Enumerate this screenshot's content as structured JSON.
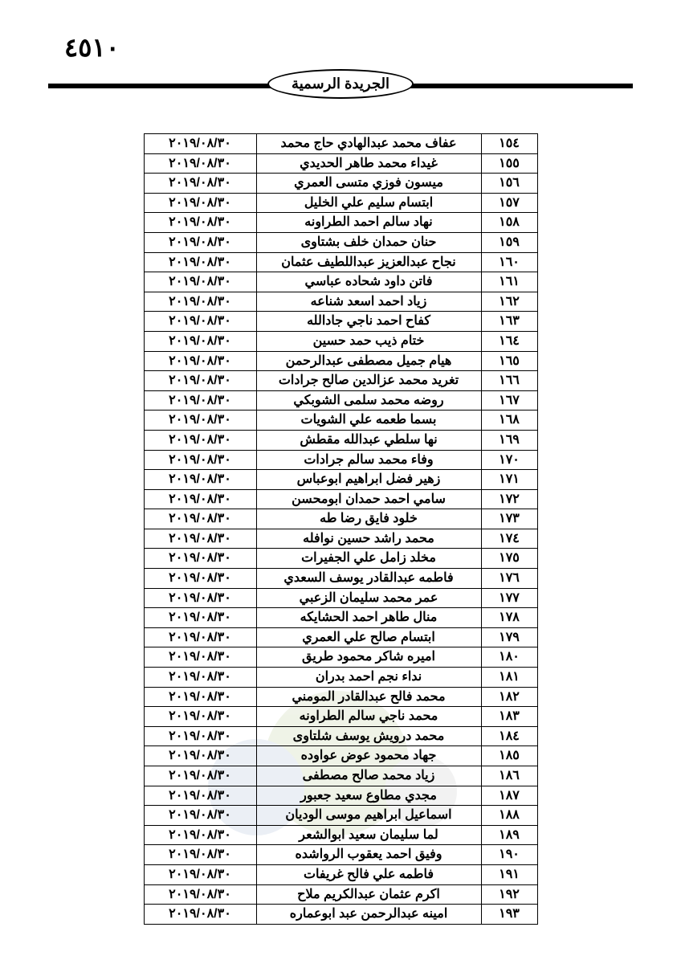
{
  "page_number": "٤٥١٠",
  "gazette_title": "الجريدة الرسمية",
  "table": {
    "rows": [
      {
        "num": "١٥٤",
        "name": "عفاف محمد عبدالهادي حاج محمد",
        "date": "٢٠١٩/٠٨/٣٠"
      },
      {
        "num": "١٥٥",
        "name": "غيداء محمد طاهر الحديدي",
        "date": "٢٠١٩/٠٨/٣٠"
      },
      {
        "num": "١٥٦",
        "name": "ميسون فوزي متسى العمري",
        "date": "٢٠١٩/٠٨/٣٠"
      },
      {
        "num": "١٥٧",
        "name": "ابتسام سليم علي الخليل",
        "date": "٢٠١٩/٠٨/٣٠"
      },
      {
        "num": "١٥٨",
        "name": "نهاد سالم احمد الطراونه",
        "date": "٢٠١٩/٠٨/٣٠"
      },
      {
        "num": "١٥٩",
        "name": "حنان حمدان خلف بشتاوى",
        "date": "٢٠١٩/٠٨/٣٠"
      },
      {
        "num": "١٦٠",
        "name": "نجاح عبدالعزيز عبداللطيف عثمان",
        "date": "٢٠١٩/٠٨/٣٠"
      },
      {
        "num": "١٦١",
        "name": "فاتن داود شحاده عباسي",
        "date": "٢٠١٩/٠٨/٣٠"
      },
      {
        "num": "١٦٢",
        "name": "زياد احمد اسعد شناعه",
        "date": "٢٠١٩/٠٨/٣٠"
      },
      {
        "num": "١٦٣",
        "name": "كفاح احمد ناجي جادالله",
        "date": "٢٠١٩/٠٨/٣٠"
      },
      {
        "num": "١٦٤",
        "name": "ختام ذيب حمد حسين",
        "date": "٢٠١٩/٠٨/٣٠"
      },
      {
        "num": "١٦٥",
        "name": "هيام جميل مصطفى عبدالرحمن",
        "date": "٢٠١٩/٠٨/٣٠"
      },
      {
        "num": "١٦٦",
        "name": "تغريد محمد عزالدين صالح جرادات",
        "date": "٢٠١٩/٠٨/٣٠"
      },
      {
        "num": "١٦٧",
        "name": "روضه محمد سلمى الشوبكي",
        "date": "٢٠١٩/٠٨/٣٠"
      },
      {
        "num": "١٦٨",
        "name": "بسما طعمه علي الشويات",
        "date": "٢٠١٩/٠٨/٣٠"
      },
      {
        "num": "١٦٩",
        "name": "نها سلطي عبدالله مقطش",
        "date": "٢٠١٩/٠٨/٣٠"
      },
      {
        "num": "١٧٠",
        "name": "وفاء محمد سالم جرادات",
        "date": "٢٠١٩/٠٨/٣٠"
      },
      {
        "num": "١٧١",
        "name": "زهير فضل ابراهيم ابوعباس",
        "date": "٢٠١٩/٠٨/٣٠"
      },
      {
        "num": "١٧٢",
        "name": "سامي احمد حمدان ابومحسن",
        "date": "٢٠١٩/٠٨/٣٠"
      },
      {
        "num": "١٧٣",
        "name": "خلود فايق رضا طه",
        "date": "٢٠١٩/٠٨/٣٠"
      },
      {
        "num": "١٧٤",
        "name": "محمد راشد حسين نوافله",
        "date": "٢٠١٩/٠٨/٣٠"
      },
      {
        "num": "١٧٥",
        "name": "مخلد زامل علي الجفيرات",
        "date": "٢٠١٩/٠٨/٣٠"
      },
      {
        "num": "١٧٦",
        "name": "فاطمه عبدالقادر يوسف السعدي",
        "date": "٢٠١٩/٠٨/٣٠"
      },
      {
        "num": "١٧٧",
        "name": "عمر محمد سليمان الزعبي",
        "date": "٢٠١٩/٠٨/٣٠"
      },
      {
        "num": "١٧٨",
        "name": "منال طاهر احمد الحشايكه",
        "date": "٢٠١٩/٠٨/٣٠"
      },
      {
        "num": "١٧٩",
        "name": "ابتسام صالح علي العمري",
        "date": "٢٠١٩/٠٨/٣٠"
      },
      {
        "num": "١٨٠",
        "name": "اميره شاكر محمود طريق",
        "date": "٢٠١٩/٠٨/٣٠"
      },
      {
        "num": "١٨١",
        "name": "نداء نجم احمد بدران",
        "date": "٢٠١٩/٠٨/٣٠"
      },
      {
        "num": "١٨٢",
        "name": "محمد فالح عبدالقادر المومني",
        "date": "٢٠١٩/٠٨/٣٠"
      },
      {
        "num": "١٨٣",
        "name": "محمد ناجي سالم الطراونه",
        "date": "٢٠١٩/٠٨/٣٠"
      },
      {
        "num": "١٨٤",
        "name": "محمد درويش يوسف شلتاوى",
        "date": "٢٠١٩/٠٨/٣٠"
      },
      {
        "num": "١٨٥",
        "name": "جهاد محمود عوض عواوده",
        "date": "٢٠١٩/٠٨/٣٠"
      },
      {
        "num": "١٨٦",
        "name": "زياد محمد صالح مصطفى",
        "date": "٢٠١٩/٠٨/٣٠"
      },
      {
        "num": "١٨٧",
        "name": "مجدي مطاوع سعيد جعبور",
        "date": "٢٠١٩/٠٨/٣٠"
      },
      {
        "num": "١٨٨",
        "name": "اسماعيل ابراهيم موسى الوديان",
        "date": "٢٠١٩/٠٨/٣٠"
      },
      {
        "num": "١٨٩",
        "name": "لما سليمان سعيد ابوالشعر",
        "date": "٢٠١٩/٠٨/٣٠"
      },
      {
        "num": "١٩٠",
        "name": "وفيق احمد يعقوب الرواشده",
        "date": "٢٠١٩/٠٨/٣٠"
      },
      {
        "num": "١٩١",
        "name": "فاطمه علي فالح غريفات",
        "date": "٢٠١٩/٠٨/٣٠"
      },
      {
        "num": "١٩٢",
        "name": "اكرم عثمان عبدالكريم ملاح",
        "date": "٢٠١٩/٠٨/٣٠"
      },
      {
        "num": "١٩٣",
        "name": "امينه عبدالرحمن عبد ابوعماره",
        "date": "٢٠١٩/٠٨/٣٠"
      }
    ]
  },
  "colors": {
    "text": "#000000",
    "border": "#000000",
    "background": "#ffffff",
    "watermark_green": "#6b8e23",
    "watermark_blue": "#4a6fa5",
    "watermark_gray": "#888888"
  }
}
